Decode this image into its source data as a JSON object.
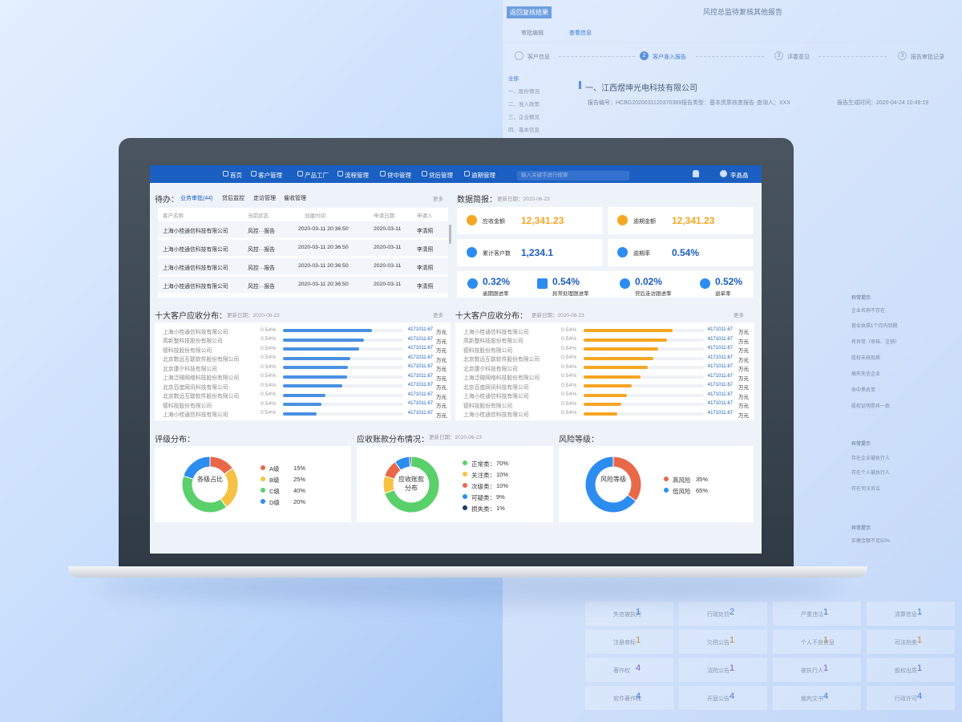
{
  "background": {
    "back_button": "返回复核结果",
    "title": "风控总监待复核其他报告",
    "tabs": [
      "审批编辑",
      "查看信息"
    ],
    "steps": [
      "客户信息",
      "客户准入报告",
      "评委意见",
      "报告审批记录"
    ],
    "step_numbers": [
      "2",
      "3",
      "3"
    ],
    "sidebar": [
      "全部",
      "一、股份情况",
      "二、准入政策",
      "三、企业概览",
      "四、基本信息"
    ],
    "heading": "一、江西煜坤光电科技有限公司",
    "meta": [
      "报告编号：HCBG2020031120370369",
      "报告类型：基本资质核查报告",
      "查询人：XXX",
      "报告生成时间：2020-04-24 10:49:19"
    ],
    "hints": [
      "异常提示",
      "企业名称不存在",
      "营业执照1个月内到期",
      "有异常（审核、注销）",
      "股权未核现质",
      "高失失信企业",
      "命中黑名单",
      "股权证明是异一致",
      "异常提示",
      "存在企业被执行人",
      "存在个人被执行人",
      "存在司法诉讼",
      "异常提示",
      "实缴金额不足50%"
    ],
    "grid": [
      [
        "失信被执行",
        "1"
      ],
      [
        "行政处罚",
        "2"
      ],
      [
        "严重违法",
        "1"
      ],
      [
        "清算信息",
        "1"
      ],
      [
        "注册商标",
        "1"
      ],
      [
        "欠税公告",
        "1"
      ],
      [
        "个人不良信息",
        "1"
      ],
      [
        "司法拍卖",
        "1"
      ],
      [
        "著作权",
        "4"
      ],
      [
        "法院公告",
        "1"
      ],
      [
        "被执行人",
        "1"
      ],
      [
        "股权出质",
        "1"
      ],
      [
        "软件著作权",
        "4"
      ],
      [
        "开庭公告",
        "4"
      ],
      [
        "裁判文书",
        "4"
      ],
      [
        "行政许可",
        "4"
      ]
    ]
  },
  "nav": {
    "items": [
      "首页",
      "客户管理",
      "产品工厂",
      "流程管理",
      "贷中管理",
      "贷后管理",
      "逾期管理"
    ],
    "search_placeholder": "输入关键字进行搜索",
    "user": "李晶晶"
  },
  "todo": {
    "title": "待办：",
    "tabs": [
      "业务审批(44)",
      "贷后监控",
      "走访管理",
      "催收管理"
    ],
    "more": "更多",
    "columns": [
      "客户名称",
      "当前状态",
      "创建时间",
      "申请日期",
      "申请人"
    ],
    "rows": [
      [
        "上海小桂通信科技有限公司",
        "风控···报告",
        "2020-03-11 20:36:50",
        "2020-03-11",
        "李清照"
      ],
      [
        "上海小桂通信科技有限公司",
        "风控···报告",
        "2020-03-11 20:36:50",
        "2020-03-11",
        "李清照"
      ],
      [
        "上海小桂通信科技有限公司",
        "风控···报告",
        "2020-03-11 20:36:50",
        "2020-03-11",
        "李清照"
      ],
      [
        "上海小桂通信科技有限公司",
        "风控···报告",
        "2020-03-11 20:36:50",
        "2020-03-11",
        "李清照"
      ]
    ]
  },
  "brief": {
    "title": "数据简报：",
    "update": "更新日期：2020-06-23",
    "cards": [
      {
        "label": "应收金额",
        "value": "12,341.23",
        "color": "#f5a623"
      },
      {
        "label": "逾期金额",
        "value": "12,341.23",
        "color": "#f5a623"
      },
      {
        "label": "累计客户数",
        "value": "1,234.1",
        "color": "#1a5fc1"
      },
      {
        "label": "逾期率",
        "value": "0.54%",
        "color": "#1a5fc1"
      }
    ],
    "rates": [
      {
        "value": "0.32%",
        "label": "逾期跟进率"
      },
      {
        "value": "0.54%",
        "label": "异常处理跟进率"
      },
      {
        "value": "0.02%",
        "label": "贷后走访跟进率"
      },
      {
        "value": "0.52%",
        "label": "退单率"
      }
    ]
  },
  "top10": [
    {
      "title": "十大客户应收分布：",
      "update": "更新日期：2020-06-23",
      "more": "更多",
      "color": "#4a90e2",
      "xlim": [
        0,
        100
      ],
      "rows": [
        {
          "name": "上海小桂通信科技有限公司",
          "share": "0.54%",
          "bar": 74,
          "amount": "4171011.67",
          "unit": "万元"
        },
        {
          "name": "高新整科技股份有限公司",
          "share": "0.54%",
          "bar": 67,
          "amount": "4171011.67",
          "unit": "万元"
        },
        {
          "name": "德科技股份有限公司",
          "share": "0.54%",
          "bar": 63,
          "amount": "4171011.67",
          "unit": "万元"
        },
        {
          "name": "北京数远互联软件股份有限公司",
          "share": "0.54%",
          "bar": 56,
          "amount": "4171011.67",
          "unit": "万元"
        },
        {
          "name": "北京康夕科技有限公司",
          "share": "0.54%",
          "bar": 54,
          "amount": "4171011.67",
          "unit": "万元"
        },
        {
          "name": "上海泛微网络科技股份有限公司",
          "share": "0.54%",
          "bar": 53,
          "amount": "4171011.67",
          "unit": "万元"
        },
        {
          "name": "北京百度网讯科技有限公司",
          "share": "0.54%",
          "bar": 49,
          "amount": "4171011.67",
          "unit": "万元"
        },
        {
          "name": "北京数远互联软件股份有限公司",
          "share": "0.54%",
          "bar": 35,
          "amount": "4171011.67",
          "unit": "万元"
        },
        {
          "name": "德科技股份有限公司",
          "share": "0.54%",
          "bar": 32,
          "amount": "4171011.67",
          "unit": "万元"
        },
        {
          "name": "上海小桂通信科技有限公司",
          "share": "0.54%",
          "bar": 28,
          "amount": "4171011.67",
          "unit": "万元"
        }
      ]
    },
    {
      "title": "十大客户应收分布：",
      "update": "更新日期：2020-06-23",
      "more": "更多",
      "color": "#f5a623",
      "xlim": [
        0,
        100
      ],
      "rows": [
        {
          "name": "上海小桂通信科技有限公司",
          "share": "0.54%",
          "bar": 74,
          "amount": "4171011.67",
          "unit": "万元"
        },
        {
          "name": "高新整科技股份有限公司",
          "share": "0.54%",
          "bar": 69,
          "amount": "4171011.67",
          "unit": "万元"
        },
        {
          "name": "德科技股份有限公司",
          "share": "0.54%",
          "bar": 62,
          "amount": "4171011.67",
          "unit": "万元"
        },
        {
          "name": "北京数远互联软件股份有限公司",
          "share": "0.54%",
          "bar": 58,
          "amount": "4171011.67",
          "unit": "万元"
        },
        {
          "name": "北京康夕科技有限公司",
          "share": "0.54%",
          "bar": 53,
          "amount": "4171011.67",
          "unit": "万元"
        },
        {
          "name": "上海泛微网络科技股份有限公司",
          "share": "0.54%",
          "bar": 47,
          "amount": "4171011.67",
          "unit": "万元"
        },
        {
          "name": "北京百度网讯科技有限公司",
          "share": "0.54%",
          "bar": 40,
          "amount": "4171011.67",
          "unit": "万元"
        },
        {
          "name": "上海小桂通信科技有限公司",
          "share": "0.54%",
          "bar": 36,
          "amount": "4171011.67",
          "unit": "万元"
        },
        {
          "name": "德科技股份有限公司",
          "share": "0.54%",
          "bar": 31,
          "amount": "4171011.67",
          "unit": "万元"
        },
        {
          "name": "上海小桂通信科技有限公司",
          "share": "0.54%",
          "bar": 28,
          "amount": "4171011.67",
          "unit": "万元"
        }
      ]
    }
  ],
  "donuts": [
    {
      "title": "评级分布：",
      "center": "各级占比",
      "series": [
        {
          "name": "A级",
          "color": "#e8684a",
          "value": 15,
          "value_label": "15%"
        },
        {
          "name": "B级",
          "color": "#f6c244",
          "value": 25,
          "value_label": "25%"
        },
        {
          "name": "C级",
          "color": "#5ad06a",
          "value": 40,
          "value_label": "40%"
        },
        {
          "name": "D级",
          "color": "#2d8cf0",
          "value": 20,
          "value_label": "20%"
        }
      ]
    },
    {
      "title": "应收账款分布情况：",
      "update": "更新日期：2020-06-23",
      "center": "应收账款分布",
      "series": [
        {
          "name": "正常类：",
          "color": "#5ad06a",
          "value": 70,
          "value_label": "70%"
        },
        {
          "name": "关注类：",
          "color": "#f6c244",
          "value": 10,
          "value_label": "10%"
        },
        {
          "name": "次级类：",
          "color": "#e8684a",
          "value": 10,
          "value_label": "10%"
        },
        {
          "name": "可疑类：",
          "color": "#2d8cf0",
          "value": 9,
          "value_label": "9%"
        },
        {
          "name": "损失类：",
          "color": "#1c3a6e",
          "value": 1,
          "value_label": "1%"
        }
      ]
    },
    {
      "title": "风险等级：",
      "center": "风险等级",
      "series": [
        {
          "name": "高风险",
          "color": "#e8684a",
          "value": 35,
          "value_label": "35%"
        },
        {
          "name": "低风险",
          "color": "#2d8cf0",
          "value": 65,
          "value_label": "65%"
        }
      ]
    }
  ]
}
